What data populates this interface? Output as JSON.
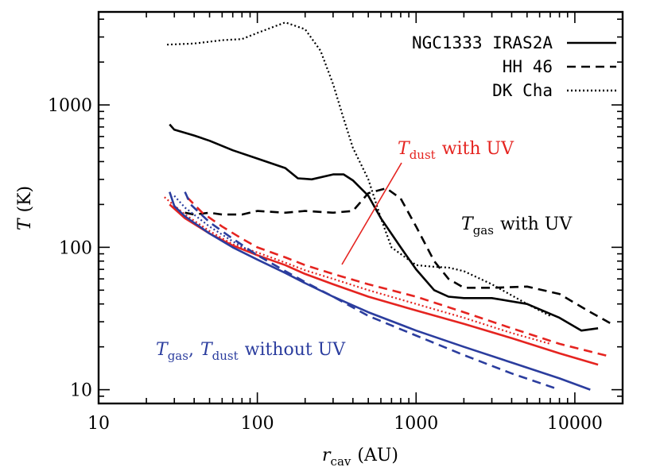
{
  "chart_data": {
    "type": "line",
    "xscale": "log",
    "yscale": "log",
    "xlim": [
      10,
      20000
    ],
    "ylim": [
      8,
      4500
    ],
    "x_ticks": [
      "10",
      "100",
      "1000",
      "10000"
    ],
    "y_ticks": [
      "10",
      "100",
      "1000"
    ],
    "xlabel": {
      "main": "r",
      "sub": "cav",
      "unit": "(AU)"
    },
    "ylabel": {
      "main": "T",
      "unit": "(K)"
    },
    "legend": {
      "position": "top-right",
      "entries": [
        {
          "label": "NGC1333 IRAS2A",
          "style": "solid"
        },
        {
          "label": "HH 46",
          "style": "dashed"
        },
        {
          "label": "DK Cha",
          "style": "dotted"
        }
      ]
    },
    "annotations": {
      "tdust_uv": {
        "main": "T",
        "sub": "dust",
        "rest": "with UV",
        "color": "#e52420"
      },
      "tgas_uv": {
        "main": "T",
        "sub": "gas",
        "rest": "with UV",
        "color": "#000000"
      },
      "nouv": {
        "main1": "T",
        "sub1": "gas",
        "sep": ",",
        "main2": "T",
        "sub2": "dust",
        "rest": "without UV",
        "color": "#2b3d9e"
      }
    },
    "colors": {
      "with_uv_gas": "#000000",
      "with_uv_dust": "#e52420",
      "without_uv": "#2b3d9e"
    },
    "series": [
      {
        "source": "NGC1333 IRAS2A",
        "quantity": "Tgas with UV",
        "color": "#000000",
        "style": "solid",
        "points": [
          [
            28,
            730
          ],
          [
            30,
            670
          ],
          [
            40,
            610
          ],
          [
            50,
            560
          ],
          [
            70,
            480
          ],
          [
            100,
            420
          ],
          [
            150,
            360
          ],
          [
            180,
            305
          ],
          [
            220,
            300
          ],
          [
            300,
            325
          ],
          [
            350,
            325
          ],
          [
            400,
            295
          ],
          [
            500,
            230
          ],
          [
            600,
            160
          ],
          [
            800,
            100
          ],
          [
            1000,
            70
          ],
          [
            1300,
            50
          ],
          [
            1600,
            45
          ],
          [
            2000,
            44
          ],
          [
            3000,
            44
          ],
          [
            5000,
            40
          ],
          [
            8000,
            32
          ],
          [
            11000,
            26
          ],
          [
            14000,
            27
          ]
        ]
      },
      {
        "source": "HH 46",
        "quantity": "Tgas with UV",
        "color": "#000000",
        "style": "dashed",
        "points": [
          [
            35,
            175
          ],
          [
            40,
            170
          ],
          [
            50,
            175
          ],
          [
            60,
            170
          ],
          [
            80,
            170
          ],
          [
            100,
            180
          ],
          [
            150,
            175
          ],
          [
            200,
            180
          ],
          [
            300,
            175
          ],
          [
            400,
            180
          ],
          [
            500,
            240
          ],
          [
            650,
            260
          ],
          [
            800,
            220
          ],
          [
            1000,
            140
          ],
          [
            1300,
            80
          ],
          [
            1600,
            60
          ],
          [
            2000,
            52
          ],
          [
            3000,
            52
          ],
          [
            5000,
            53
          ],
          [
            8000,
            47
          ],
          [
            12000,
            36
          ],
          [
            17000,
            29
          ]
        ]
      },
      {
        "source": "DK Cha",
        "quantity": "Tgas with UV",
        "color": "#000000",
        "style": "dotted",
        "points": [
          [
            27,
            2650
          ],
          [
            40,
            2700
          ],
          [
            60,
            2850
          ],
          [
            80,
            2900
          ],
          [
            100,
            3200
          ],
          [
            150,
            3800
          ],
          [
            200,
            3400
          ],
          [
            250,
            2400
          ],
          [
            300,
            1400
          ],
          [
            350,
            800
          ],
          [
            400,
            500
          ],
          [
            500,
            300
          ],
          [
            600,
            160
          ],
          [
            700,
            100
          ],
          [
            1000,
            75
          ],
          [
            1300,
            73
          ],
          [
            1600,
            72
          ],
          [
            2000,
            68
          ],
          [
            3000,
            55
          ],
          [
            5000,
            40
          ],
          [
            7000,
            33
          ]
        ]
      },
      {
        "source": "NGC1333 IRAS2A",
        "quantity": "Tdust with UV",
        "color": "#e52420",
        "style": "solid",
        "points": [
          [
            28,
            200
          ],
          [
            35,
            160
          ],
          [
            50,
            125
          ],
          [
            70,
            103
          ],
          [
            100,
            88
          ],
          [
            150,
            75
          ],
          [
            200,
            65
          ],
          [
            300,
            55
          ],
          [
            500,
            45
          ],
          [
            1000,
            36
          ],
          [
            2000,
            29
          ],
          [
            4000,
            23
          ],
          [
            8000,
            18
          ],
          [
            14000,
            15
          ]
        ]
      },
      {
        "source": "HH 46",
        "quantity": "Tdust with UV",
        "color": "#e52420",
        "style": "dashed",
        "points": [
          [
            36,
            225
          ],
          [
            45,
            175
          ],
          [
            60,
            140
          ],
          [
            80,
            115
          ],
          [
            100,
            100
          ],
          [
            150,
            85
          ],
          [
            200,
            75
          ],
          [
            300,
            65
          ],
          [
            500,
            55
          ],
          [
            1000,
            45
          ],
          [
            2000,
            35
          ],
          [
            4000,
            27
          ],
          [
            8000,
            21
          ],
          [
            17000,
            17
          ]
        ]
      },
      {
        "source": "DK Cha",
        "quantity": "Tdust with UV",
        "color": "#e52420",
        "style": "dotted",
        "points": [
          [
            26,
            225
          ],
          [
            35,
            170
          ],
          [
            50,
            130
          ],
          [
            70,
            105
          ],
          [
            100,
            92
          ],
          [
            150,
            78
          ],
          [
            200,
            69
          ],
          [
            300,
            60
          ],
          [
            500,
            50
          ],
          [
            1000,
            40
          ],
          [
            2000,
            32
          ],
          [
            4000,
            25
          ],
          [
            7000,
            21
          ]
        ]
      },
      {
        "source": "NGC1333 IRAS2A",
        "quantity": "Tgas, Tdust without UV",
        "color": "#2b3d9e",
        "style": "solid",
        "points": [
          [
            28,
            245
          ],
          [
            30,
            195
          ],
          [
            35,
            165
          ],
          [
            50,
            125
          ],
          [
            70,
            100
          ],
          [
            100,
            82
          ],
          [
            150,
            66
          ],
          [
            200,
            56
          ],
          [
            300,
            45
          ],
          [
            500,
            35
          ],
          [
            1000,
            26
          ],
          [
            2000,
            20
          ],
          [
            4000,
            15.5
          ],
          [
            8000,
            12
          ],
          [
            12500,
            10
          ]
        ]
      },
      {
        "source": "HH 46",
        "quantity": "Tgas, Tdust without UV",
        "color": "#2b3d9e",
        "style": "dashed",
        "points": [
          [
            35,
            245
          ],
          [
            38,
            200
          ],
          [
            50,
            150
          ],
          [
            70,
            115
          ],
          [
            100,
            88
          ],
          [
            150,
            68
          ],
          [
            200,
            57
          ],
          [
            300,
            45
          ],
          [
            500,
            33
          ],
          [
            1000,
            24
          ],
          [
            2000,
            17.5
          ],
          [
            4000,
            13
          ],
          [
            8000,
            10
          ]
        ]
      },
      {
        "source": "DK Cha",
        "quantity": "Tgas, Tdust without UV",
        "color": "#2b3d9e",
        "style": "dotted",
        "points": [
          [
            30,
            230
          ],
          [
            35,
            190
          ],
          [
            50,
            140
          ],
          [
            70,
            110
          ],
          [
            100,
            88
          ]
        ]
      }
    ]
  }
}
